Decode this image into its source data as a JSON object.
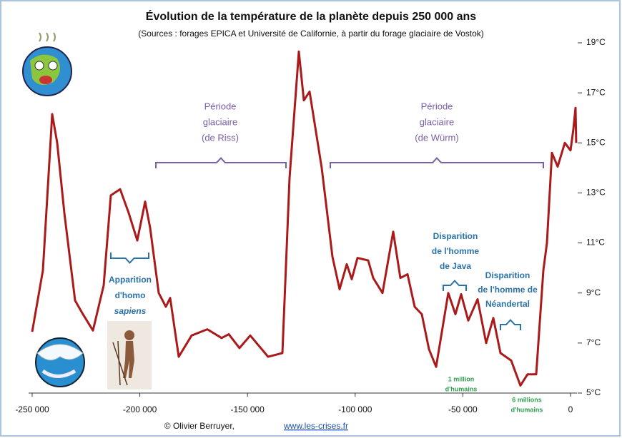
{
  "chart_data": {
    "type": "line",
    "title": "Évolution de la température de la planète depuis 250 000 ans",
    "subtitle": "(Sources : forages EPICA et Université de Californie, à partir du forage glaciaire de Vostok)",
    "series": [
      {
        "color": "#aa1a1a",
        "x": [
          -250000,
          -245020,
          -240700,
          -238380,
          -235060,
          -230080,
          -226760,
          -221780,
          -216800,
          -213480,
          -209170,
          -205180,
          -201200,
          -197540,
          -195220,
          -191230,
          -187910,
          -185920,
          -181940,
          -175960,
          -168660,
          -162020,
          -158700,
          -153720,
          -148740,
          -140440,
          -133800,
          -130480,
          -126160,
          -123840,
          -121180,
          -115540,
          -110560,
          -107240,
          -103920,
          -101590,
          -98940,
          -93960,
          -91630,
          -87320,
          -82340,
          -79020,
          -75700,
          -72380,
          -69060,
          -65740,
          -62420,
          -56770,
          -53450,
          -50800,
          -47480,
          -43160,
          -39180,
          -35860,
          -32540,
          -27560,
          -23250,
          -19930,
          -15940,
          -12620,
          -10960,
          -8630,
          -5980,
          -2660,
          0,
          1330,
          2320,
          2650
        ],
        "values": [
          7.45,
          9.9,
          16.15,
          15.0,
          12.2,
          8.7,
          8.2,
          7.5,
          9.3,
          12.9,
          13.15,
          12.2,
          11.1,
          12.65,
          11.6,
          9.0,
          8.45,
          8.8,
          6.45,
          7.3,
          7.55,
          7.2,
          7.35,
          6.8,
          7.3,
          6.45,
          6.6,
          13.6,
          18.65,
          16.7,
          17.05,
          14.0,
          10.45,
          9.15,
          10.15,
          9.55,
          10.4,
          10.3,
          9.6,
          9.0,
          11.45,
          9.6,
          9.75,
          8.45,
          8.15,
          6.75,
          6.05,
          9.0,
          8.15,
          8.95,
          7.9,
          8.75,
          7.0,
          8.0,
          6.6,
          6.3,
          5.3,
          5.75,
          5.75,
          9.9,
          11.0,
          14.6,
          14.05,
          15.0,
          14.7,
          15.55,
          16.4,
          15.0
        ]
      }
    ],
    "xlim": [
      -250000,
      3000
    ],
    "xticks": [
      {
        "value": -250000,
        "label": "-250 000"
      },
      {
        "value": -200000,
        "label": "-200 000"
      },
      {
        "value": -150000,
        "label": "-150 000"
      },
      {
        "value": -100000,
        "label": "-100 000"
      },
      {
        "value": -50000,
        "label": "-50 000"
      },
      0
    ],
    "ylim": [
      5,
      19
    ],
    "yticks": [
      {
        "value": 5,
        "label": "5°C"
      },
      {
        "value": 7,
        "label": "7°C"
      },
      {
        "value": 9,
        "label": "9°C"
      },
      {
        "value": 11,
        "label": "11°C"
      },
      {
        "value": 13,
        "label": "13°C"
      },
      {
        "value": 15,
        "label": "15°C"
      },
      {
        "value": 17,
        "label": "17°C"
      },
      {
        "value": 19,
        "label": "19°C"
      }
    ],
    "annotations": [
      {
        "lines": [
          "Période",
          "glaciaire",
          "(de Riss)"
        ]
      },
      {
        "lines": [
          "Période",
          "glaciaire",
          "(de Würm)"
        ]
      },
      {
        "lines": [
          "Apparition",
          "d'homo",
          "sapiens"
        ]
      },
      {
        "lines": [
          "Disparition",
          "de l'homme",
          "de Java"
        ]
      },
      {
        "lines": [
          "Disparition",
          "de l'homme de",
          "Néandertal"
        ]
      },
      {
        "lines": [
          "1 million",
          "d'humains"
        ]
      },
      {
        "lines": [
          "6 millions",
          "d'humains"
        ]
      }
    ],
    "credit": "© Olivier Berruyer,",
    "credit_link": "www.les-crises.fr"
  }
}
